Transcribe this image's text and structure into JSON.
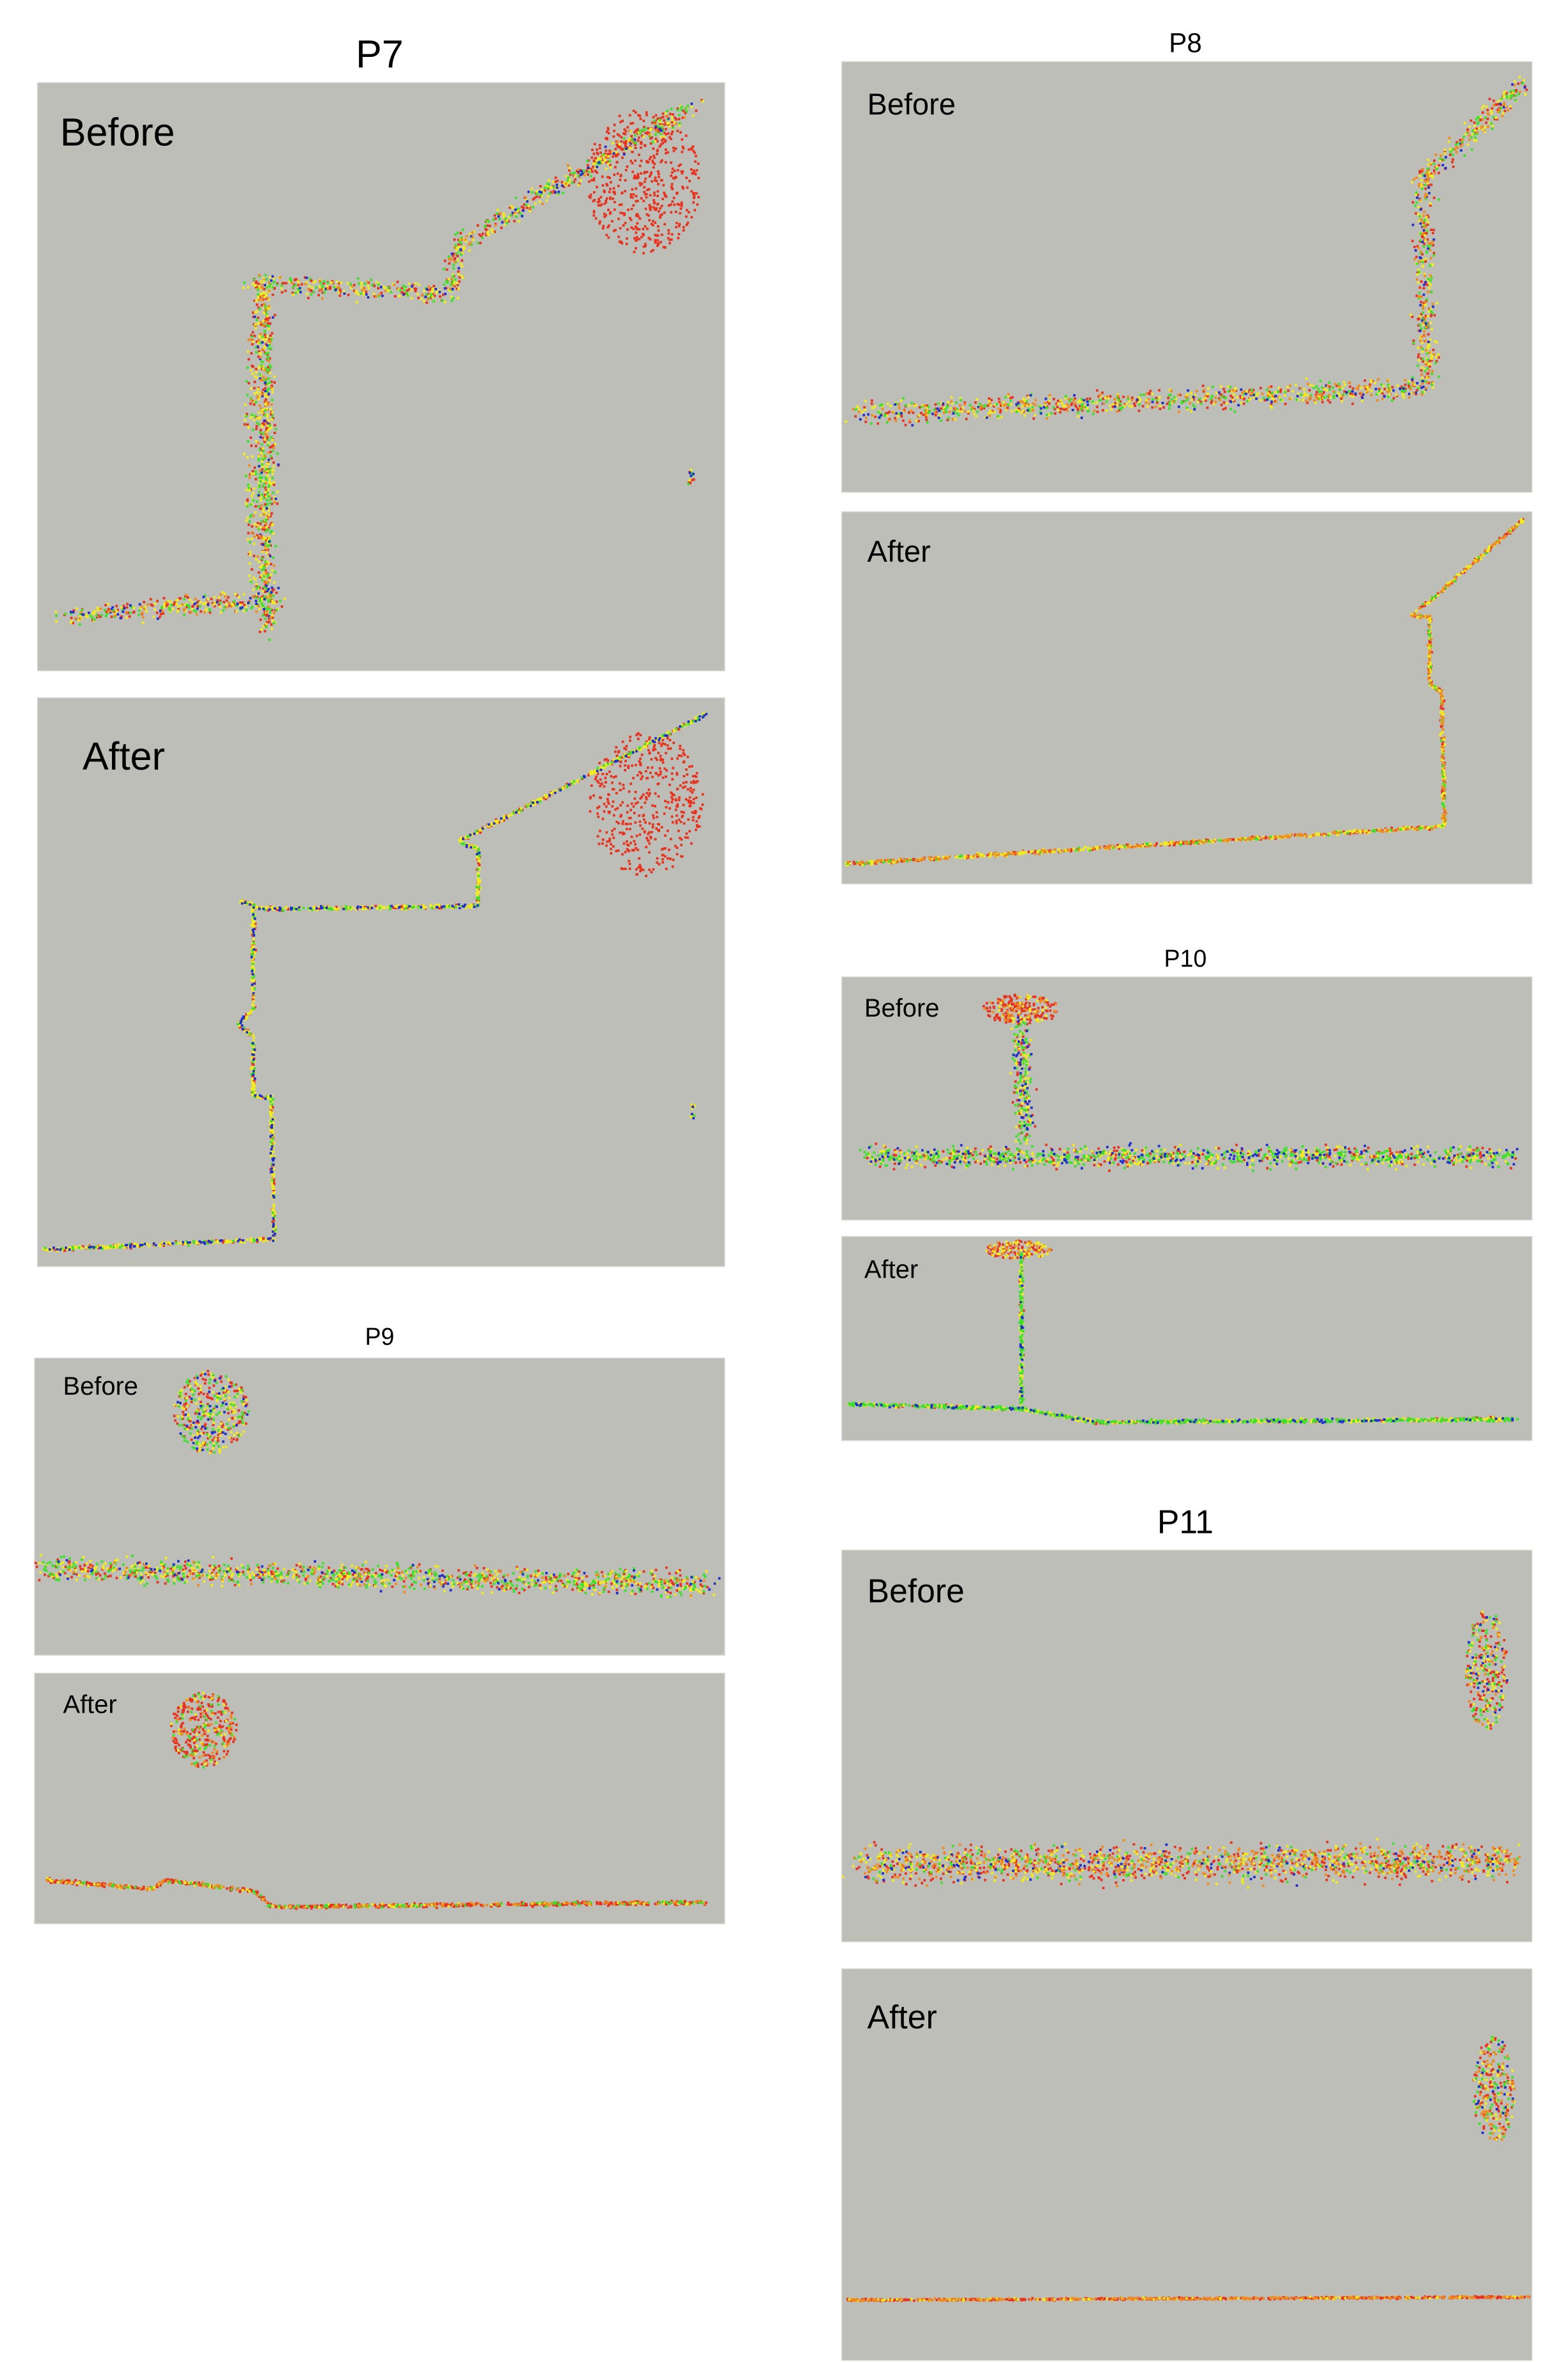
{
  "figure": {
    "panels": [
      {
        "title": "P7",
        "views": [
          {
            "label": "Before"
          },
          {
            "label": "After"
          }
        ]
      },
      {
        "title": "P8",
        "views": [
          {
            "label": "Before"
          },
          {
            "label": "After"
          }
        ]
      },
      {
        "title": "P9",
        "views": [
          {
            "label": "Before"
          },
          {
            "label": "After"
          }
        ]
      },
      {
        "title": "P10",
        "views": [
          {
            "label": "Before"
          },
          {
            "label": "After"
          }
        ]
      },
      {
        "title": "P11",
        "views": [
          {
            "label": "Before"
          },
          {
            "label": "After"
          }
        ]
      }
    ]
  }
}
